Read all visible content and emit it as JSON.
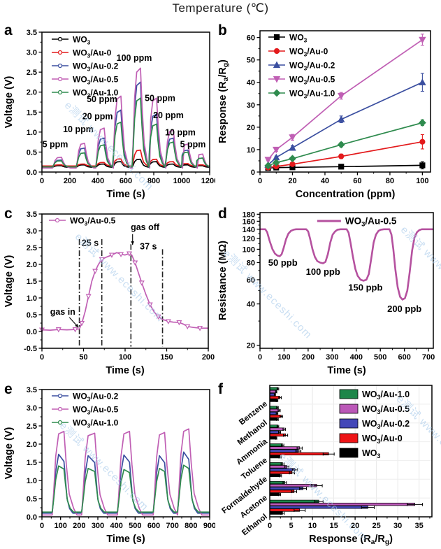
{
  "figure": {
    "title": "Temperature (℃)",
    "watermark_text": "e测试 www.eceshi.com",
    "watermark_color": "#a6c9ea"
  },
  "chart_data": [
    {
      "id": "a",
      "letter": "a",
      "type": "pulse-line",
      "xlabel": "Time (s)",
      "ylabel": "Voltage (V)",
      "xlim": [
        0,
        1200
      ],
      "ylim": [
        0,
        3.5
      ],
      "xtick": 200,
      "ytick": 0.5,
      "ydec": 1,
      "windows": [
        [
          75,
          140
        ],
        [
          245,
          305
        ],
        [
          385,
          445
        ],
        [
          505,
          565
        ],
        [
          645,
          705
        ],
        [
          760,
          820
        ],
        [
          880,
          940
        ],
        [
          985,
          1045
        ],
        [
          1090,
          1150
        ]
      ],
      "series": [
        {
          "name": "WO{3}",
          "color": "#000000",
          "baseline": 0.12,
          "fall": 40,
          "peaks": [
            0.16,
            0.18,
            0.2,
            0.26,
            0.32,
            0.26,
            0.2,
            0.18,
            0.16
          ]
        },
        {
          "name": "WO{3}/Au-0",
          "color": "#e31a1c",
          "baseline": 0.15,
          "fall": 40,
          "peaks": [
            0.18,
            0.2,
            0.24,
            0.33,
            0.55,
            0.32,
            0.26,
            0.21,
            0.18
          ]
        },
        {
          "name": "WO{3}/Au-0.2",
          "color": "#3b4fa0",
          "baseline": 0.12,
          "fall": 42,
          "peaks": [
            0.3,
            0.6,
            0.85,
            1.55,
            2.25,
            1.45,
            0.85,
            0.55,
            0.35
          ]
        },
        {
          "name": "WO{3}/Au-0.5",
          "color": "#c05fb4",
          "baseline": 0.1,
          "fall": 48,
          "peaks": [
            0.37,
            0.72,
            1.1,
            1.9,
            2.6,
            1.85,
            1.05,
            0.7,
            0.45
          ]
        },
        {
          "name": "WO{3}/Au-1.0",
          "color": "#2f8b4e",
          "baseline": 0.13,
          "fall": 42,
          "peaks": [
            0.28,
            0.48,
            0.68,
            1.25,
            1.85,
            1.2,
            0.75,
            0.5,
            0.35
          ]
        }
      ],
      "annotations": [
        {
          "x": 95,
          "y": 0.62,
          "text": "5 ppm"
        },
        {
          "x": 260,
          "y": 1.0,
          "text": "10 ppm"
        },
        {
          "x": 398,
          "y": 1.32,
          "text": "20 ppm"
        },
        {
          "x": 430,
          "y": 1.75,
          "text": "50 ppm"
        },
        {
          "x": 660,
          "y": 2.78,
          "text": "100 ppm"
        },
        {
          "x": 845,
          "y": 1.78,
          "text": "50 ppm"
        },
        {
          "x": 905,
          "y": 1.35,
          "text": "20 ppm"
        },
        {
          "x": 990,
          "y": 0.92,
          "text": "10 ppm"
        },
        {
          "x": 1080,
          "y": 0.62,
          "text": "5 ppm"
        }
      ]
    },
    {
      "id": "b",
      "letter": "b",
      "type": "line",
      "xlabel": "Concentration (ppm)",
      "ylabel": "Response (R{a}/R{g})",
      "xlim": [
        0,
        105
      ],
      "ylim": [
        0,
        63
      ],
      "xtick": 20,
      "ytick": 10,
      "ydec": 0,
      "x": [
        5,
        10,
        20,
        50,
        100
      ],
      "series": [
        {
          "name": "WO{3}",
          "color": "#000000",
          "marker": "square",
          "y": [
            1.8,
            2.0,
            2.1,
            2.4,
            3.0
          ],
          "err": [
            0.3,
            0.3,
            0.3,
            0.4,
            1.6
          ]
        },
        {
          "name": "WO{3}/Au-0",
          "color": "#e31a1c",
          "marker": "circle",
          "y": [
            2.0,
            2.5,
            3.5,
            7.0,
            13.5
          ],
          "err": [
            0.3,
            0.4,
            0.5,
            1.0,
            3.2
          ]
        },
        {
          "name": "WO{3}/Au-0.2",
          "color": "#3b4fa0",
          "marker": "triangle-up",
          "y": [
            3.2,
            6.5,
            10.8,
            23.5,
            40.0
          ],
          "err": [
            0.4,
            0.6,
            1.0,
            1.5,
            4.0
          ]
        },
        {
          "name": "WO{3}/Au-0.5",
          "color": "#c05fb4",
          "marker": "triangle-down",
          "y": [
            5.5,
            10.0,
            15.5,
            34.0,
            59.0
          ],
          "err": [
            0.5,
            0.8,
            1.3,
            1.5,
            2.5
          ]
        },
        {
          "name": "WO{3}/Au-1.0",
          "color": "#2f8b4e",
          "marker": "diamond",
          "y": [
            2.8,
            4.2,
            6.0,
            12.2,
            22.0
          ],
          "err": [
            0.4,
            0.5,
            0.6,
            1.0,
            1.3
          ]
        }
      ]
    },
    {
      "id": "c",
      "letter": "c",
      "type": "line",
      "xlabel": "Time (s)",
      "ylabel": "Voltage (V)",
      "xlim": [
        0,
        200
      ],
      "ylim": [
        -0.5,
        3.5
      ],
      "xtick": 50,
      "ytick": 0.5,
      "ydec": 1,
      "series": [
        {
          "name": "WO{3}/Au-0.5",
          "color": "#c05fb4",
          "marker": "triangle-down-open",
          "points": [
            [
              0,
              0.05
            ],
            [
              10,
              0.04
            ],
            [
              20,
              0.06
            ],
            [
              30,
              0.05
            ],
            [
              40,
              0.06
            ],
            [
              45,
              0.08
            ],
            [
              48,
              0.25
            ],
            [
              52,
              0.6
            ],
            [
              56,
              1.05
            ],
            [
              60,
              1.5
            ],
            [
              64,
              1.8
            ],
            [
              68,
              2.0
            ],
            [
              72,
              2.15
            ],
            [
              78,
              2.22
            ],
            [
              84,
              2.28
            ],
            [
              90,
              2.35
            ],
            [
              95,
              2.3
            ],
            [
              100,
              2.28
            ],
            [
              105,
              2.32
            ],
            [
              108,
              2.28
            ],
            [
              112,
              2.05
            ],
            [
              116,
              1.75
            ],
            [
              120,
              1.45
            ],
            [
              125,
              1.1
            ],
            [
              130,
              0.8
            ],
            [
              135,
              0.58
            ],
            [
              140,
              0.44
            ],
            [
              145,
              0.36
            ],
            [
              152,
              0.3
            ],
            [
              158,
              0.28
            ],
            [
              165,
              0.27
            ],
            [
              170,
              0.22
            ],
            [
              175,
              0.15
            ],
            [
              182,
              0.12
            ],
            [
              190,
              0.1
            ],
            [
              200,
              0.1
            ]
          ]
        }
      ],
      "vlines": [
        {
          "x": 45,
          "y1": 2.75
        },
        {
          "x": 72,
          "y1": 2.75
        },
        {
          "x": 107,
          "y1": 2.6
        },
        {
          "x": 145,
          "y1": 2.45
        }
      ],
      "annotations": [
        {
          "x": 58,
          "y": 2.55,
          "text": "25 s"
        },
        {
          "x": 124,
          "y": 3.02,
          "text": "gas off"
        },
        {
          "x": 128,
          "y": 2.45,
          "text": "37 s"
        },
        {
          "x": 25,
          "y": 0.5,
          "text": "gas in"
        }
      ],
      "arrows": [
        {
          "x1": 33,
          "y1": 0.42,
          "x2": 44,
          "y2": 0.12
        },
        {
          "x1": 109,
          "y1": 2.9,
          "x2": 109,
          "y2": 2.58
        }
      ]
    },
    {
      "id": "d",
      "letter": "d",
      "type": "line",
      "logY": true,
      "xlabel": "Time (s)",
      "ylabel": "Resistance (MΩ)",
      "xlim": [
        0,
        720
      ],
      "ylim": [
        19,
        185
      ],
      "xtick": 100,
      "yticks": [
        20,
        40,
        60,
        80,
        100,
        120,
        140,
        160,
        180
      ],
      "yminor": [
        30,
        50,
        70,
        90,
        110,
        130,
        150,
        170
      ],
      "ydec": 0,
      "series": [
        {
          "name": "WO{3}/Au-0.5",
          "color": "#b5519f",
          "width": 2.6,
          "points": [
            [
              0,
              140
            ],
            [
              22,
              140
            ],
            [
              30,
              133
            ],
            [
              40,
              115
            ],
            [
              52,
              100
            ],
            [
              62,
              93
            ],
            [
              72,
              90
            ],
            [
              82,
              89
            ],
            [
              90,
              92
            ],
            [
              98,
              102
            ],
            [
              108,
              118
            ],
            [
              118,
              130
            ],
            [
              128,
              136
            ],
            [
              140,
              139
            ],
            [
              150,
              140
            ],
            [
              192,
              140
            ],
            [
              200,
              135
            ],
            [
              208,
              120
            ],
            [
              218,
              100
            ],
            [
              228,
              88
            ],
            [
              238,
              82
            ],
            [
              250,
              80
            ],
            [
              262,
              79
            ],
            [
              272,
              81
            ],
            [
              282,
              92
            ],
            [
              292,
              112
            ],
            [
              302,
              128
            ],
            [
              312,
              135
            ],
            [
              322,
              139
            ],
            [
              335,
              140
            ],
            [
              360,
              140
            ],
            [
              368,
              132
            ],
            [
              376,
              112
            ],
            [
              386,
              88
            ],
            [
              396,
              72
            ],
            [
              406,
              64
            ],
            [
              418,
              60
            ],
            [
              430,
              59
            ],
            [
              442,
              60
            ],
            [
              452,
              66
            ],
            [
              462,
              85
            ],
            [
              472,
              112
            ],
            [
              482,
              128
            ],
            [
              492,
              136
            ],
            [
              502,
              139
            ],
            [
              515,
              140
            ],
            [
              538,
              140
            ],
            [
              546,
              128
            ],
            [
              554,
              100
            ],
            [
              562,
              72
            ],
            [
              572,
              53
            ],
            [
              582,
              45
            ],
            [
              592,
              43
            ],
            [
              602,
              44
            ],
            [
              612,
              50
            ],
            [
              622,
              68
            ],
            [
              632,
              98
            ],
            [
              642,
              122
            ],
            [
              652,
              133
            ],
            [
              662,
              138
            ],
            [
              672,
              140
            ],
            [
              720,
              140
            ]
          ]
        }
      ],
      "annotations": [
        {
          "x": 95,
          "y": 76,
          "text": "50 ppb"
        },
        {
          "x": 262,
          "y": 65,
          "text": "100 ppb"
        },
        {
          "x": 438,
          "y": 50,
          "text": "150 ppb"
        },
        {
          "x": 600,
          "y": 35,
          "text": "200 ppb"
        }
      ]
    },
    {
      "id": "e",
      "letter": "e",
      "type": "pulse-line",
      "xlabel": "Time (s)",
      "ylabel": "Voltage (V)",
      "xlim": [
        0,
        900
      ],
      "ylim": [
        0,
        3.5
      ],
      "xtick": 100,
      "ytick": 0.5,
      "ydec": 1,
      "windows": [
        [
          55,
          118
        ],
        [
          213,
          283
        ],
        [
          405,
          470
        ],
        [
          597,
          658
        ],
        [
          727,
          788
        ]
      ],
      "series": [
        {
          "name": "WO{3}/Au-0.2",
          "color": "#3b4fa0",
          "baseline": 0.1,
          "fall": 30,
          "p0": 1.0,
          "p1": 0.88,
          "peaks": [
            1.72,
            1.68,
            1.7,
            1.68,
            1.78
          ]
        },
        {
          "name": "WO{3}/Au-0.5",
          "color": "#c05fb4",
          "baseline": 0.05,
          "fall": 52,
          "p0": 0.97,
          "p1": 1.0,
          "peaks": [
            2.35,
            2.3,
            2.35,
            2.32,
            2.42
          ]
        },
        {
          "name": "WO{3}/Au-1.0",
          "color": "#2f8b4e",
          "baseline": 0.13,
          "fall": 34,
          "p0": 1.0,
          "p1": 0.93,
          "peaks": [
            1.4,
            1.33,
            1.3,
            1.33,
            1.42
          ]
        }
      ]
    },
    {
      "id": "f",
      "letter": "f",
      "type": "barh",
      "xlabel": "Response (R{a}/R{g})",
      "xlim": [
        0,
        38
      ],
      "xtick": 5,
      "categories": [
        "Benzene",
        "Methanol",
        "Ammonia",
        "Toluene",
        "Formaldehyde",
        "Acetone",
        "Ethanol"
      ],
      "series": [
        {
          "name": "WO{3}/Au-1.0",
          "color": "#1d8649",
          "values": [
            1.9,
            1.8,
            1.9,
            3.0,
            3.0,
            3.5,
            11.5
          ],
          "err": [
            0.2,
            0.2,
            0.2,
            0.3,
            0.35,
            0.4,
            1.0
          ]
        },
        {
          "name": "WO{3}/Au-0.5",
          "color": "#bb58b8",
          "values": [
            1.5,
            2.2,
            3.4,
            7.0,
            4.0,
            11.0,
            34.0
          ],
          "err": [
            0.15,
            0.25,
            0.3,
            0.6,
            0.5,
            1.3,
            1.8
          ]
        },
        {
          "name": "WO{3}/Au-0.2",
          "color": "#4347b8",
          "values": [
            1.2,
            1.7,
            2.3,
            6.7,
            5.9,
            7.8,
            23.0
          ],
          "err": [
            0.15,
            0.2,
            0.25,
            0.6,
            0.6,
            0.8,
            1.5
          ]
        },
        {
          "name": "WO{3}/Au-0",
          "color": "#ee1417",
          "values": [
            2.4,
            2.7,
            3.7,
            13.8,
            5.2,
            5.7,
            7.0
          ],
          "err": [
            0.3,
            0.3,
            0.5,
            1.3,
            0.6,
            0.6,
            1.3
          ]
        },
        {
          "name": "WO{3}",
          "color": "#000000",
          "values": [
            1.7,
            1.8,
            1.5,
            2.4,
            2.5,
            2.3,
            3.0
          ],
          "err": [
            0.2,
            0.2,
            0.15,
            0.25,
            0.25,
            0.25,
            0.4
          ]
        }
      ]
    }
  ]
}
